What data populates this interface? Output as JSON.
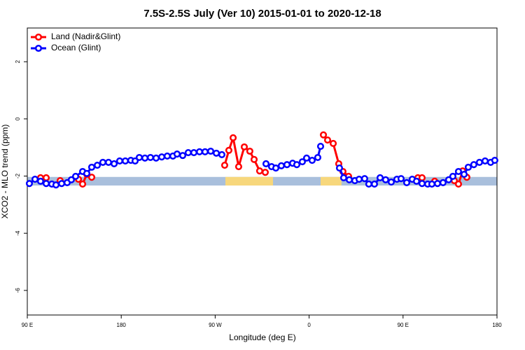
{
  "chart_data": {
    "type": "line",
    "title": "7.5S-2.5S July (Ver 10)   2015-01-01 to 2020-12-18",
    "xlabel": "Longitude (deg E)",
    "ylabel": "XCO2 - MLO trend (ppm)",
    "xlim": [
      90,
      540
    ],
    "xticks": [
      {
        "value": 90,
        "label": "90 E"
      },
      180,
      {
        "value": 270,
        "label": "90 W"
      },
      {
        "value": 360,
        "label": "0"
      },
      {
        "value": 450,
        "label": "90 E"
      },
      {
        "value": 540,
        "label": "180"
      }
    ],
    "ylim": [
      -6.86,
      3.18
    ],
    "yticks": [
      2,
      0,
      -2,
      -4,
      -6
    ],
    "legend": "upper left",
    "band": {
      "ylim": [
        -2.33,
        -2.03
      ],
      "color": "#a9bfdc",
      "segments": [
        {
          "xlim": [
            279.8,
            325.4
          ],
          "color": "#f7d77c"
        },
        {
          "xlim": [
            371,
            391
          ],
          "color": "#f7d77c"
        }
      ]
    },
    "series": [
      {
        "name": "Land (Nadir&Glint)",
        "color": "#ff0000",
        "x": [
          102.7,
          108.1,
          null,
          121.5,
          null,
          139.0,
          143.0,
          147.0,
          151.7,
          null,
          279.1,
          283.1,
          287.2,
          292.5,
          297.9,
          303.2,
          307.3,
          312.6,
          318.0,
          null,
          373.7,
          377.7,
          383.1,
          388.4,
          392.4,
          397.8,
          null,
          464.2,
          468.2,
          null,
          480.3,
          null,
          499.1,
          503.1,
          507.1,
          511.1
        ],
        "values": [
          -2.06,
          -2.06,
          null,
          -2.16,
          null,
          -2.11,
          -2.28,
          -1.94,
          -2.04,
          null,
          -1.62,
          -1.1,
          -0.66,
          -1.67,
          -0.98,
          -1.13,
          -1.42,
          -1.82,
          -1.87,
          null,
          -0.56,
          -0.74,
          -0.86,
          -1.57,
          -1.84,
          -2.01,
          null,
          -2.06,
          -2.06,
          null,
          -2.18,
          null,
          -2.16,
          -2.28,
          -1.82,
          -2.04
        ]
      },
      {
        "name": "Ocean (Glint)",
        "color": "#0000ff",
        "x": [
          92.0,
          97.4,
          102.7,
          108.1,
          113.5,
          117.5,
          122.9,
          128.2,
          132.2,
          136.3,
          143.0,
          147.0,
          151.7,
          157.1,
          162.4,
          167.8,
          173.2,
          178.5,
          183.9,
          189.2,
          193.3,
          197.3,
          202.7,
          208.0,
          213.4,
          218.8,
          224.1,
          229.5,
          233.5,
          238.9,
          244.2,
          249.6,
          255.0,
          260.3,
          265.7,
          271.1,
          276.4,
          null,
          318.7,
          324.0,
          328.1,
          333.4,
          338.8,
          344.2,
          348.2,
          353.5,
          357.6,
          362.9,
          368.3,
          371.0,
          null,
          389.1,
          393.1,
          398.5,
          403.8,
          407.9,
          413.2,
          417.2,
          422.6,
          428.0,
          433.3,
          438.7,
          444.1,
          448.1,
          453.5,
          458.8,
          462.9,
          468.2,
          473.6,
          477.6,
          483.0,
          488.3,
          493.7,
          497.7,
          503.1,
          508.5,
          512.5,
          517.8,
          523.2,
          528.6,
          533.9,
          537.9
        ],
        "values": [
          -2.26,
          -2.11,
          -2.18,
          -2.26,
          -2.28,
          -2.31,
          -2.26,
          -2.23,
          -2.13,
          -2.01,
          -1.84,
          -1.91,
          -1.69,
          -1.62,
          -1.52,
          -1.52,
          -1.57,
          -1.47,
          -1.47,
          -1.45,
          -1.47,
          -1.35,
          -1.37,
          -1.35,
          -1.37,
          -1.33,
          -1.3,
          -1.3,
          -1.23,
          -1.28,
          -1.18,
          -1.18,
          -1.15,
          -1.15,
          -1.13,
          -1.2,
          -1.25,
          null,
          -1.57,
          -1.67,
          -1.72,
          -1.64,
          -1.6,
          -1.55,
          -1.6,
          -1.5,
          -1.37,
          -1.45,
          -1.35,
          -0.96,
          null,
          -1.72,
          -2.06,
          -2.13,
          -2.16,
          -2.11,
          -2.09,
          -2.28,
          -2.28,
          -2.06,
          -2.13,
          -2.21,
          -2.11,
          -2.09,
          -2.23,
          -2.11,
          -2.18,
          -2.26,
          -2.28,
          -2.28,
          -2.26,
          -2.23,
          -2.13,
          -2.01,
          -1.84,
          -1.94,
          -1.69,
          -1.6,
          -1.52,
          -1.47,
          -1.52,
          -1.45
        ]
      }
    ]
  }
}
